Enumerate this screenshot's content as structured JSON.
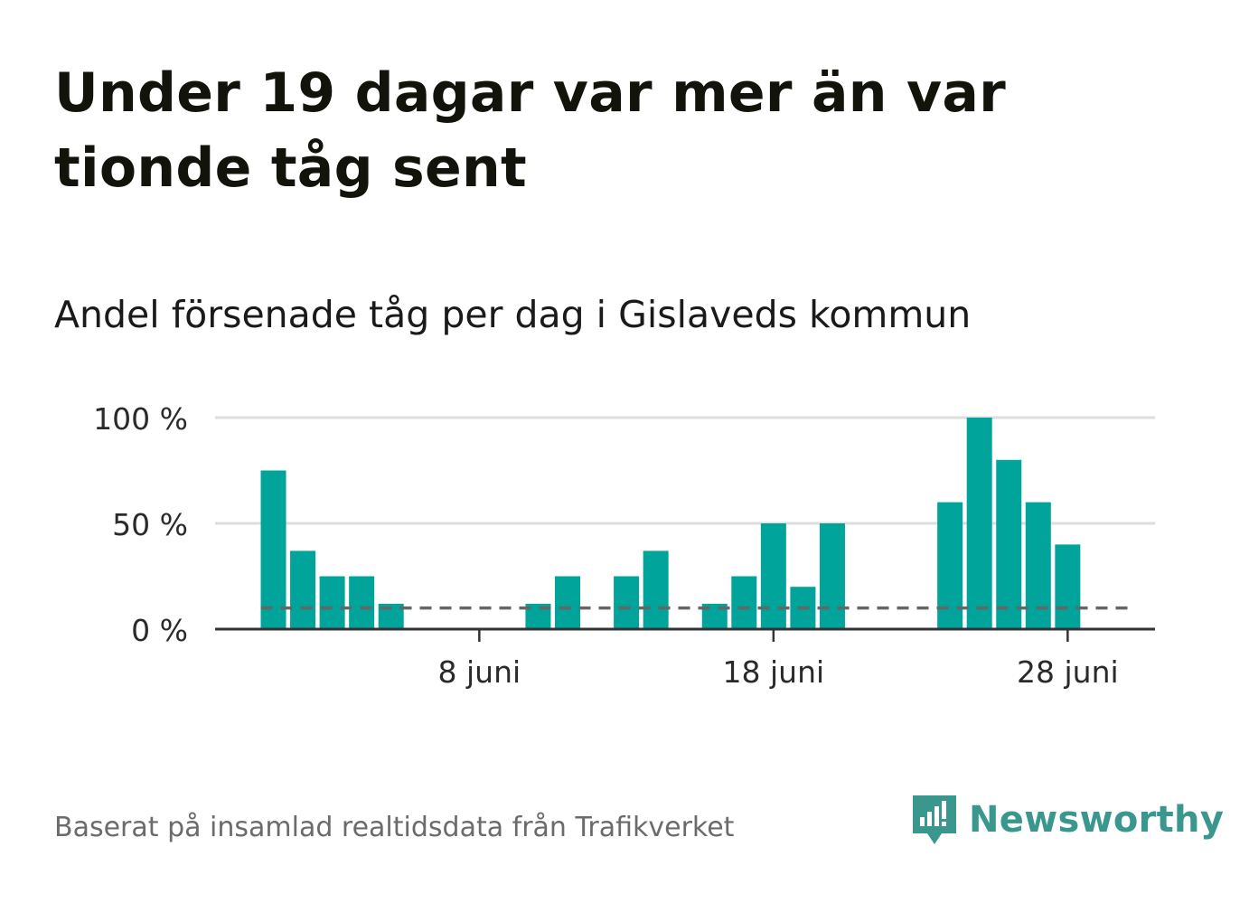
{
  "title": "Under 19 dagar var mer än var tionde tåg sent",
  "subtitle": "Andel försenade tåg per dag i Gislaveds kommun",
  "source": "Baserat på insamlad realtidsdata från Trafikverket",
  "logo": {
    "text": "Newsworthy",
    "icon": "newsworthy-logo-icon"
  },
  "colors": {
    "bar": "#00a49a",
    "reference_line": "#666666",
    "grid": "#dddddd",
    "axis": "#333333",
    "logo": "#3a978e"
  },
  "chart_data": {
    "type": "bar",
    "x_unit": "day of June",
    "x": [
      1,
      2,
      3,
      4,
      5,
      6,
      7,
      8,
      9,
      10,
      11,
      12,
      13,
      14,
      15,
      16,
      17,
      18,
      19,
      20,
      21,
      22,
      23,
      24,
      25,
      26,
      27,
      28,
      29,
      30
    ],
    "values": [
      75,
      37,
      25,
      25,
      12,
      0,
      0,
      0,
      0,
      12,
      25,
      0,
      25,
      37,
      0,
      12,
      25,
      50,
      20,
      50,
      0,
      0,
      0,
      60,
      100,
      80,
      60,
      40,
      0,
      0
    ],
    "value_unit": "%",
    "reference_line": 10,
    "ylim": [
      0,
      100
    ],
    "yticks": [
      0,
      50,
      100
    ],
    "ytick_labels": [
      "0 %",
      "50 %",
      "100 %"
    ],
    "xticks": [
      8,
      18,
      28
    ],
    "xtick_labels": [
      "8 juni",
      "18 juni",
      "28 juni"
    ],
    "grid": true,
    "legend": "none"
  }
}
